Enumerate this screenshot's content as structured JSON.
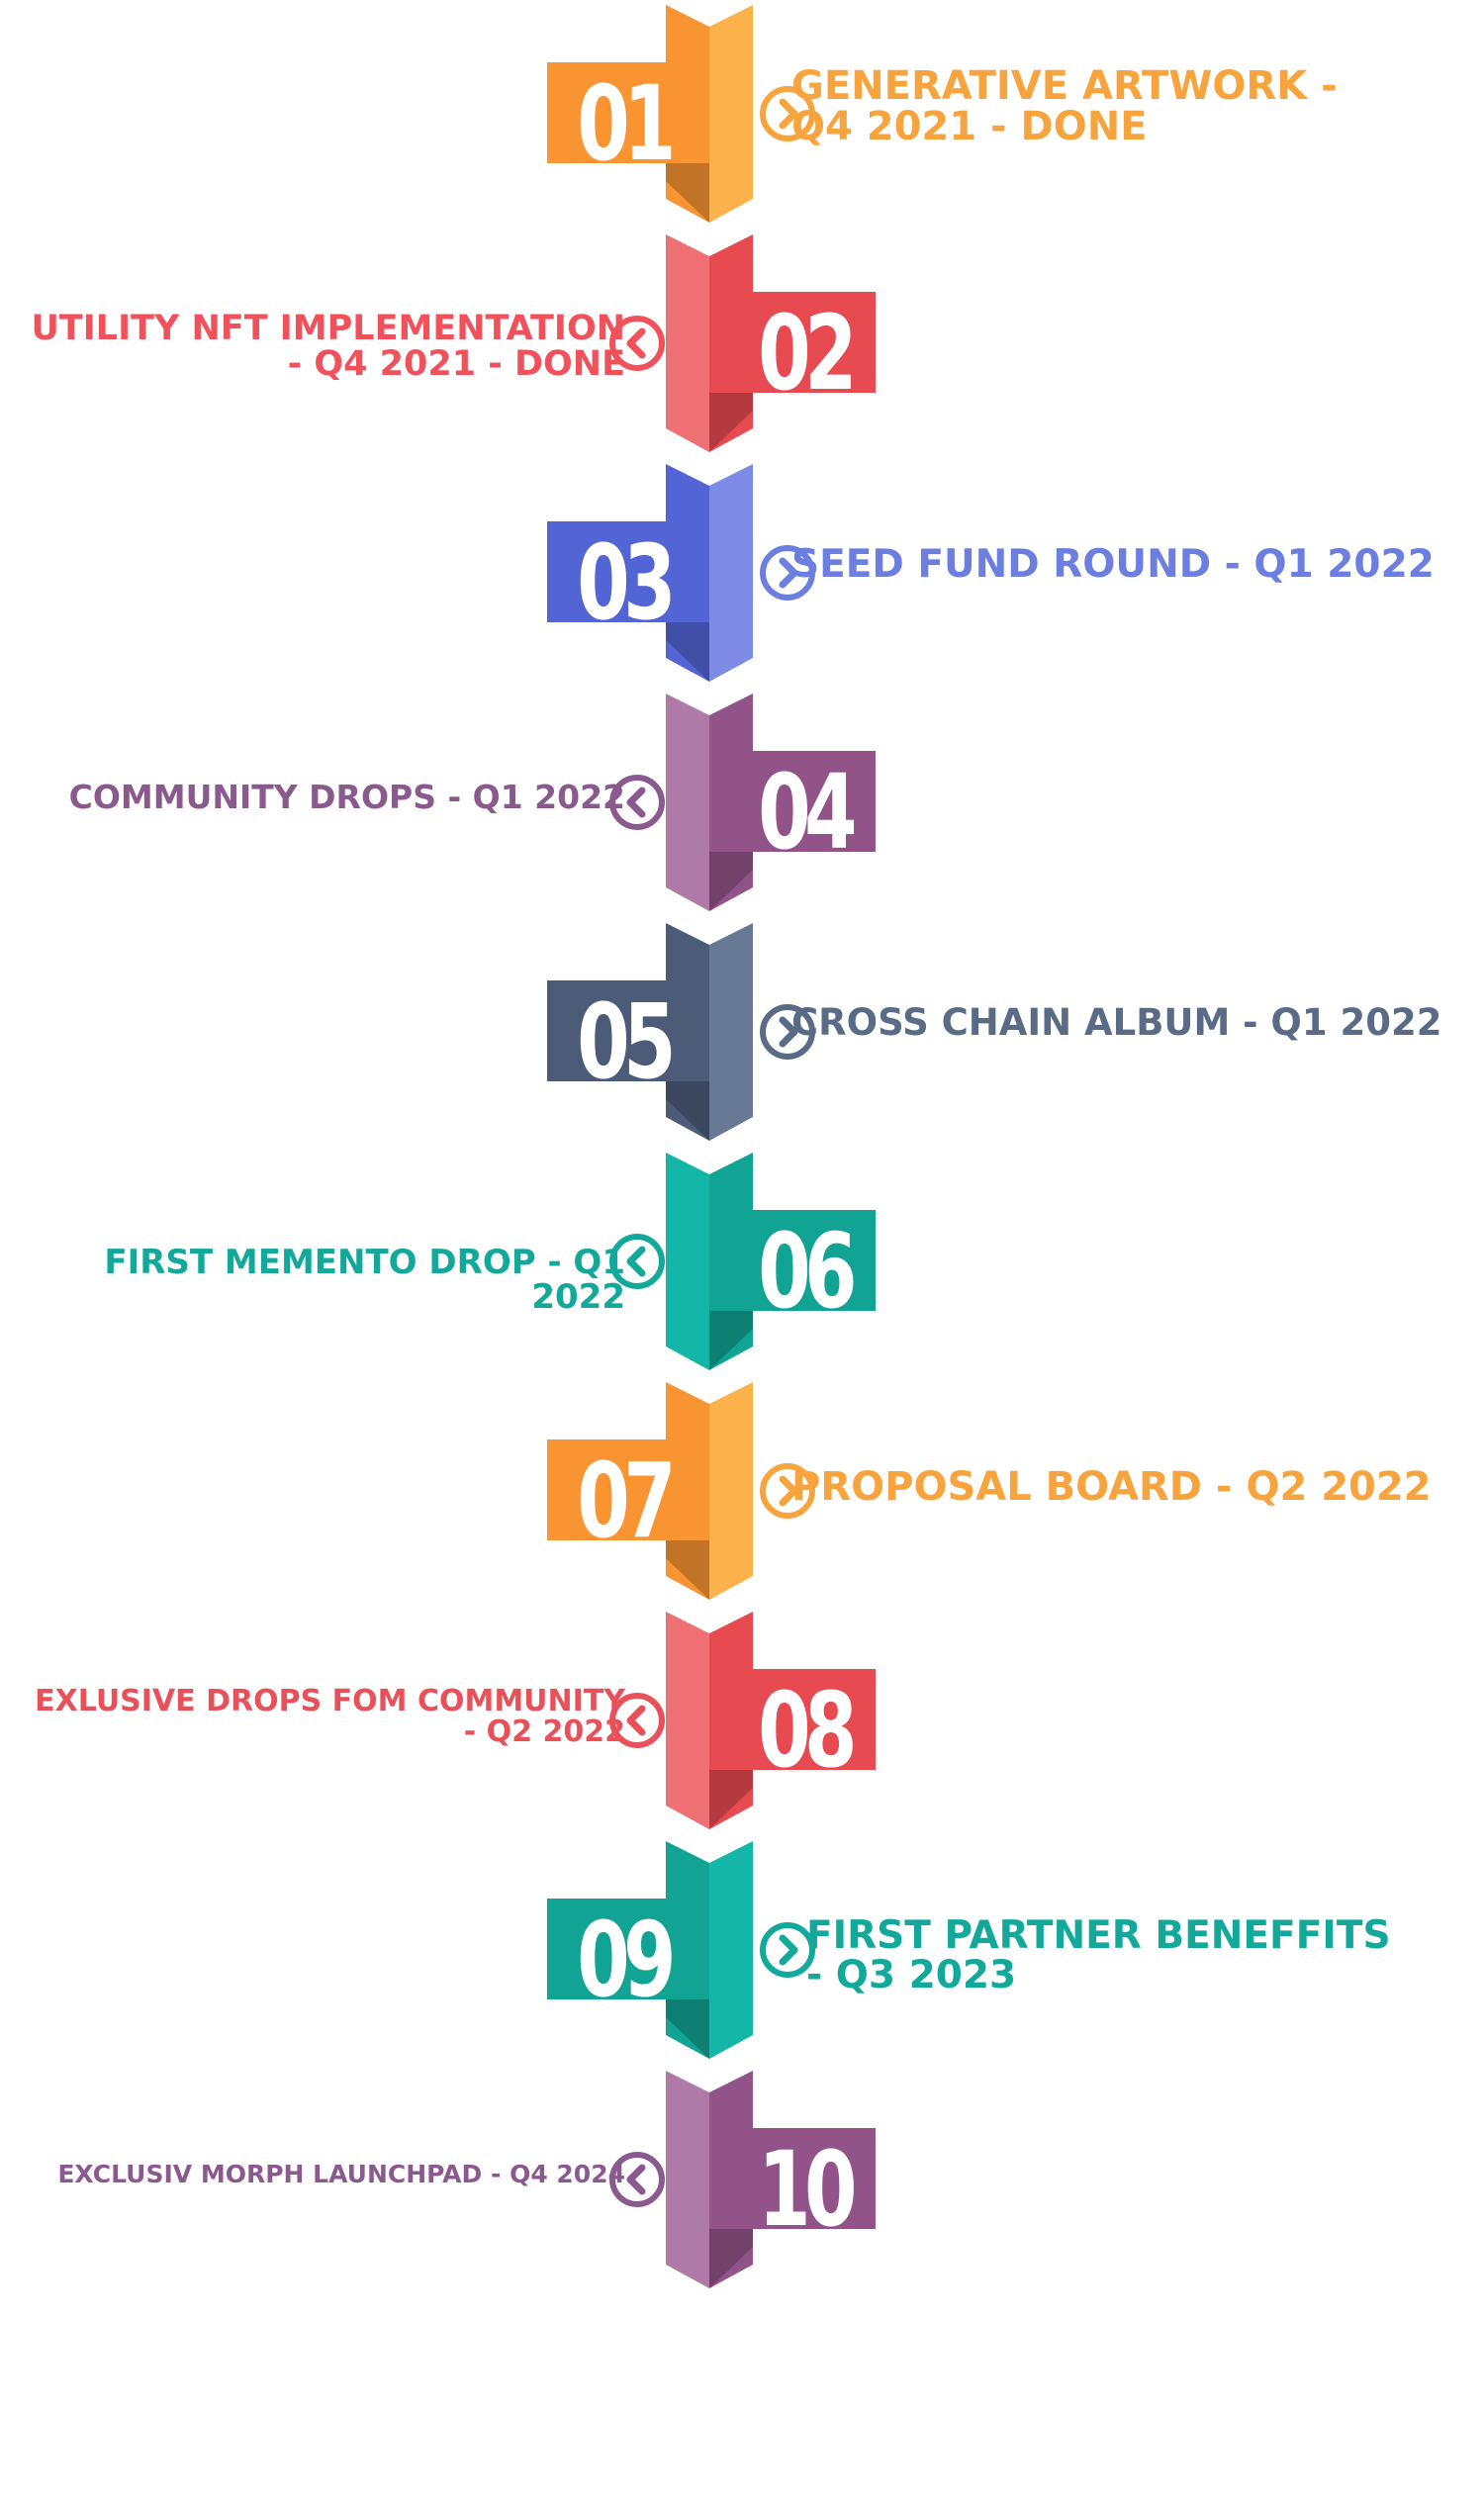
{
  "roadmap": {
    "milestones": [
      {
        "number": "01",
        "label": "GENERATIVE ARTWORK -\nQ4 2021 - DONE",
        "side": "right",
        "color": "#f8a43e",
        "dark": "#f89432",
        "light": "#fbb24a"
      },
      {
        "number": "02",
        "label": "UTILITY NFT IMPLEMENTATION\n- Q4 2021 - DONE",
        "side": "left",
        "color": "#f0515b",
        "dark": "#e84a52",
        "light": "#ee6f74"
      },
      {
        "number": "03",
        "label": "SEED FUND ROUND - Q1 2022",
        "side": "right",
        "color": "#6c7ee0",
        "dark": "#5364d4",
        "light": "#7d8ae6"
      },
      {
        "number": "04",
        "label": "COMMUNITY DROPS - Q1 2022",
        "side": "left",
        "color": "#8a5a8e",
        "dark": "#915388",
        "light": "#b07aa8"
      },
      {
        "number": "05",
        "label": "CROSS CHAIN ALBUM - Q1 2022",
        "side": "right",
        "color": "#5a6b86",
        "dark": "#4b5b78",
        "light": "#687996"
      },
      {
        "number": "06",
        "label": "FIRST MEMENTO DROP - Q1 2022",
        "side": "left",
        "color": "#12a89a",
        "dark": "#11a394",
        "light": "#14b7a7"
      },
      {
        "number": "07",
        "label": "PROPOSAL BOARD - Q2 2022",
        "side": "right",
        "color": "#f8a43e",
        "dark": "#f89432",
        "light": "#fbb24a"
      },
      {
        "number": "08",
        "label": "EXLUSIVE DROPS FOM COMMUNITY\n- Q2 2022",
        "side": "left",
        "color": "#e8505a",
        "dark": "#e84a52",
        "light": "#ee6f74"
      },
      {
        "number": "09",
        "label": "FIRST PARTNER BENEFFITS\n- Q3 2023",
        "side": "right",
        "color": "#12a89a",
        "dark": "#11a394",
        "light": "#14b7a7"
      },
      {
        "number": "10",
        "label": "EXCLUSIV MORPH LAUNCHPAD - Q4 2024",
        "side": "left",
        "color": "#8a5a8e",
        "dark": "#915388",
        "light": "#b07aa8"
      }
    ]
  }
}
